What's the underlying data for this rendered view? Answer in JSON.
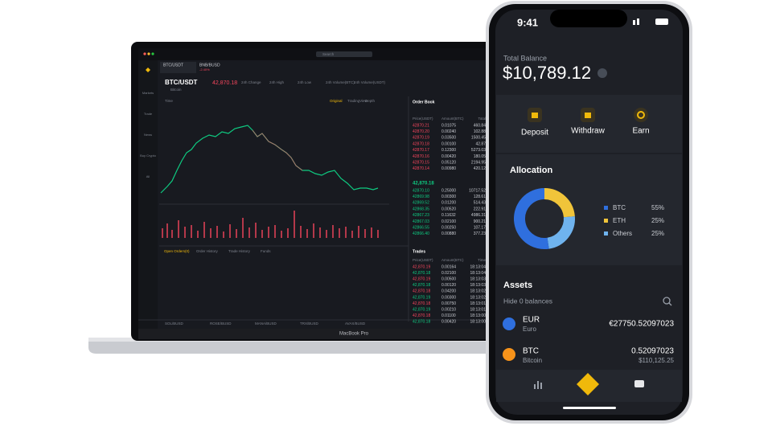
{
  "laptop": {
    "search": "Search",
    "pair": "BTC/USDT",
    "pair_sub": "Bitcoin",
    "alt_pair": "BNB/BUSD",
    "alt_change": "-2.40%",
    "price": "42,870.18",
    "stats": [
      "24h Change",
      "24h High",
      "24h Low",
      "24h Volume(BTC)",
      "24h Volume(USDT)"
    ],
    "sidebar": [
      "Markets",
      "Trade",
      "News",
      "Buy Crypto",
      "All"
    ],
    "chart_tabs": [
      "Original",
      "TradingView",
      "Depth"
    ],
    "time_label": "Time",
    "order_book": {
      "title": "Order Book",
      "header": [
        "Price(USDT)",
        "Amount(BTC)",
        "Total"
      ],
      "asks": [
        [
          "42870.21",
          "0.01075",
          "460.84"
        ],
        [
          "42870.20",
          "0.00240",
          "102.88"
        ],
        [
          "42870.19",
          "0.03500",
          "1500.45"
        ],
        [
          "42870.18",
          "0.00100",
          "42.87"
        ],
        [
          "42870.17",
          "0.12300",
          "5273.03"
        ],
        [
          "42870.16",
          "0.00420",
          "180.05"
        ],
        [
          "42870.15",
          "0.05120",
          "2194.95"
        ],
        [
          "42870.14",
          "0.00980",
          "420.12"
        ]
      ],
      "mid": "42,870.18",
      "bids": [
        [
          "42870.10",
          "0.25000",
          "10717.52"
        ],
        [
          "42869.98",
          "0.00300",
          "128.61"
        ],
        [
          "42869.52",
          "0.01200",
          "514.43"
        ],
        [
          "42868.35",
          "0.00520",
          "222.91"
        ],
        [
          "42867.23",
          "0.11632",
          "4986.31"
        ],
        [
          "42867.03",
          "0.02100",
          "900.21"
        ],
        [
          "42866.55",
          "0.00250",
          "107.17"
        ],
        [
          "42866.40",
          "0.00880",
          "377.23"
        ]
      ]
    },
    "trades": {
      "title": "Trades",
      "header": [
        "Price(USDT)",
        "Amount(BTC)",
        "Time"
      ],
      "rows": [
        [
          "42,870.19",
          "0.00164",
          "18:13:04"
        ],
        [
          "42,870.18",
          "0.02100",
          "18:13:04"
        ],
        [
          "42,870.19",
          "0.00500",
          "18:13:03"
        ],
        [
          "42,870.18",
          "0.00120",
          "18:13:03"
        ],
        [
          "42,870.18",
          "0.04200",
          "18:13:02"
        ],
        [
          "42,870.19",
          "0.00300",
          "18:13:02"
        ],
        [
          "42,870.18",
          "0.00750",
          "18:13:01"
        ],
        [
          "42,870.19",
          "0.00210",
          "18:13:01"
        ],
        [
          "42,870.18",
          "0.01100",
          "18:13:00"
        ],
        [
          "42,870.18",
          "0.00420",
          "18:13:00"
        ]
      ]
    },
    "orders_tabs": [
      "Open Orders(0)",
      "Order History",
      "Trade History",
      "Funds"
    ],
    "ticker": [
      "SOL/BUSD",
      "ROSE/BUSD",
      "MANA/BUSD",
      "TRX/BUSD",
      "AVAX/BUSD"
    ],
    "model": "MacBook Pro"
  },
  "phone": {
    "time": "9:41",
    "total_balance_label": "Total Balance",
    "total_balance": "$10,789.12",
    "actions": [
      "Deposit",
      "Withdraw",
      "Earn"
    ],
    "allocation": {
      "type": "pie",
      "title": "Allocation",
      "categories": [
        "BTC",
        "ETH",
        "Others"
      ],
      "values": [
        55,
        25,
        25
      ],
      "value_labels": [
        "55%",
        "25%",
        "25%"
      ],
      "colors": [
        "#2f6fde",
        "#f0c43a",
        "#6fb3ee"
      ]
    },
    "assets_title": "Assets",
    "hide_label": "Hide 0 balances",
    "assets": [
      {
        "code": "EUR",
        "name": "Euro",
        "amount": "€27750.52097023"
      },
      {
        "code": "BTC",
        "name": "Bitcoin",
        "amount": "0.52097023",
        "value": "$110,125.25"
      }
    ]
  }
}
